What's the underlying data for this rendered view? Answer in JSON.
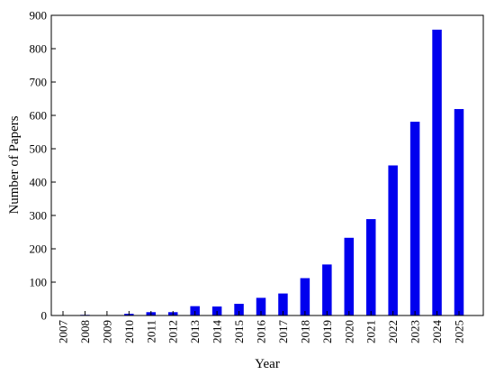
{
  "chart_data": {
    "type": "bar",
    "title": "",
    "xlabel": "Year",
    "ylabel": "Number of Papers",
    "categories": [
      "2007",
      "2008",
      "2009",
      "2010",
      "2011",
      "2012",
      "2013",
      "2014",
      "2015",
      "2016",
      "2017",
      "2018",
      "2019",
      "2020",
      "2021",
      "2022",
      "2023",
      "2024",
      "2025"
    ],
    "values": [
      0,
      2,
      0,
      5,
      10,
      10,
      28,
      27,
      35,
      53,
      66,
      112,
      153,
      233,
      289,
      450,
      581,
      857,
      619
    ],
    "ylim": [
      0,
      900
    ],
    "yticks": [
      0,
      100,
      200,
      300,
      400,
      500,
      600,
      700,
      800,
      900
    ],
    "grid": false,
    "legend": "none",
    "bar_color": "#0000ee"
  }
}
